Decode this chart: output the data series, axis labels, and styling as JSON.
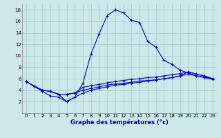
{
  "xlabel": "Graphe des températures (°c)",
  "bg_color": "#cce8e8",
  "grid_color": "#aacccc",
  "line_color": "#0000cc",
  "xlim": [
    -0.5,
    23.5
  ],
  "ylim": [
    0,
    19
  ],
  "xticks": [
    0,
    1,
    2,
    3,
    4,
    5,
    6,
    7,
    8,
    9,
    10,
    11,
    12,
    13,
    14,
    15,
    16,
    17,
    18,
    19,
    20,
    21,
    22,
    23
  ],
  "yticks": [
    2,
    4,
    6,
    8,
    10,
    12,
    14,
    16,
    18
  ],
  "curve1_x": [
    0,
    1,
    2,
    3,
    4,
    5,
    6,
    7,
    8,
    9,
    10,
    11,
    12,
    13,
    14,
    15,
    16,
    17,
    18,
    19,
    20,
    21,
    22,
    23
  ],
  "curve1_y": [
    5.5,
    4.7,
    3.8,
    3.0,
    2.8,
    2.0,
    2.8,
    5.2,
    10.3,
    13.8,
    17.0,
    18.0,
    17.5,
    16.2,
    15.8,
    12.5,
    11.5,
    9.2,
    8.5,
    7.5,
    7.0,
    6.5,
    6.3,
    6.0
  ],
  "curve2_x": [
    0,
    1,
    2,
    3,
    4,
    5,
    6,
    7,
    8,
    9,
    10,
    11,
    12,
    13,
    14,
    15,
    16,
    17,
    18,
    19,
    20,
    21,
    22,
    23
  ],
  "curve2_y": [
    5.5,
    4.7,
    4.0,
    3.8,
    3.3,
    3.3,
    3.5,
    4.0,
    4.3,
    4.6,
    4.9,
    5.1,
    5.2,
    5.4,
    5.6,
    5.7,
    5.8,
    6.0,
    6.2,
    6.5,
    7.2,
    6.8,
    6.5,
    6.0
  ],
  "curve3_x": [
    0,
    1,
    2,
    3,
    4,
    5,
    6,
    7,
    8,
    9,
    10,
    11,
    12,
    13,
    14,
    15,
    16,
    17,
    18,
    19,
    20,
    21,
    22,
    23
  ],
  "curve3_y": [
    5.5,
    4.7,
    4.0,
    3.8,
    3.3,
    2.0,
    2.8,
    3.5,
    4.0,
    4.3,
    4.6,
    4.9,
    5.0,
    5.2,
    5.4,
    5.6,
    5.8,
    6.0,
    6.2,
    6.5,
    6.8,
    6.5,
    6.2,
    5.9
  ],
  "curve4_x": [
    0,
    1,
    2,
    3,
    4,
    5,
    6,
    7,
    8,
    9,
    10,
    11,
    12,
    13,
    14,
    15,
    16,
    17,
    18,
    19,
    20,
    21,
    22,
    23
  ],
  "curve4_y": [
    5.5,
    4.7,
    4.0,
    3.8,
    3.3,
    3.3,
    3.5,
    4.5,
    4.8,
    5.0,
    5.3,
    5.5,
    5.7,
    5.9,
    6.0,
    6.2,
    6.3,
    6.5,
    6.7,
    6.9,
    7.2,
    6.8,
    6.5,
    6.0
  ]
}
